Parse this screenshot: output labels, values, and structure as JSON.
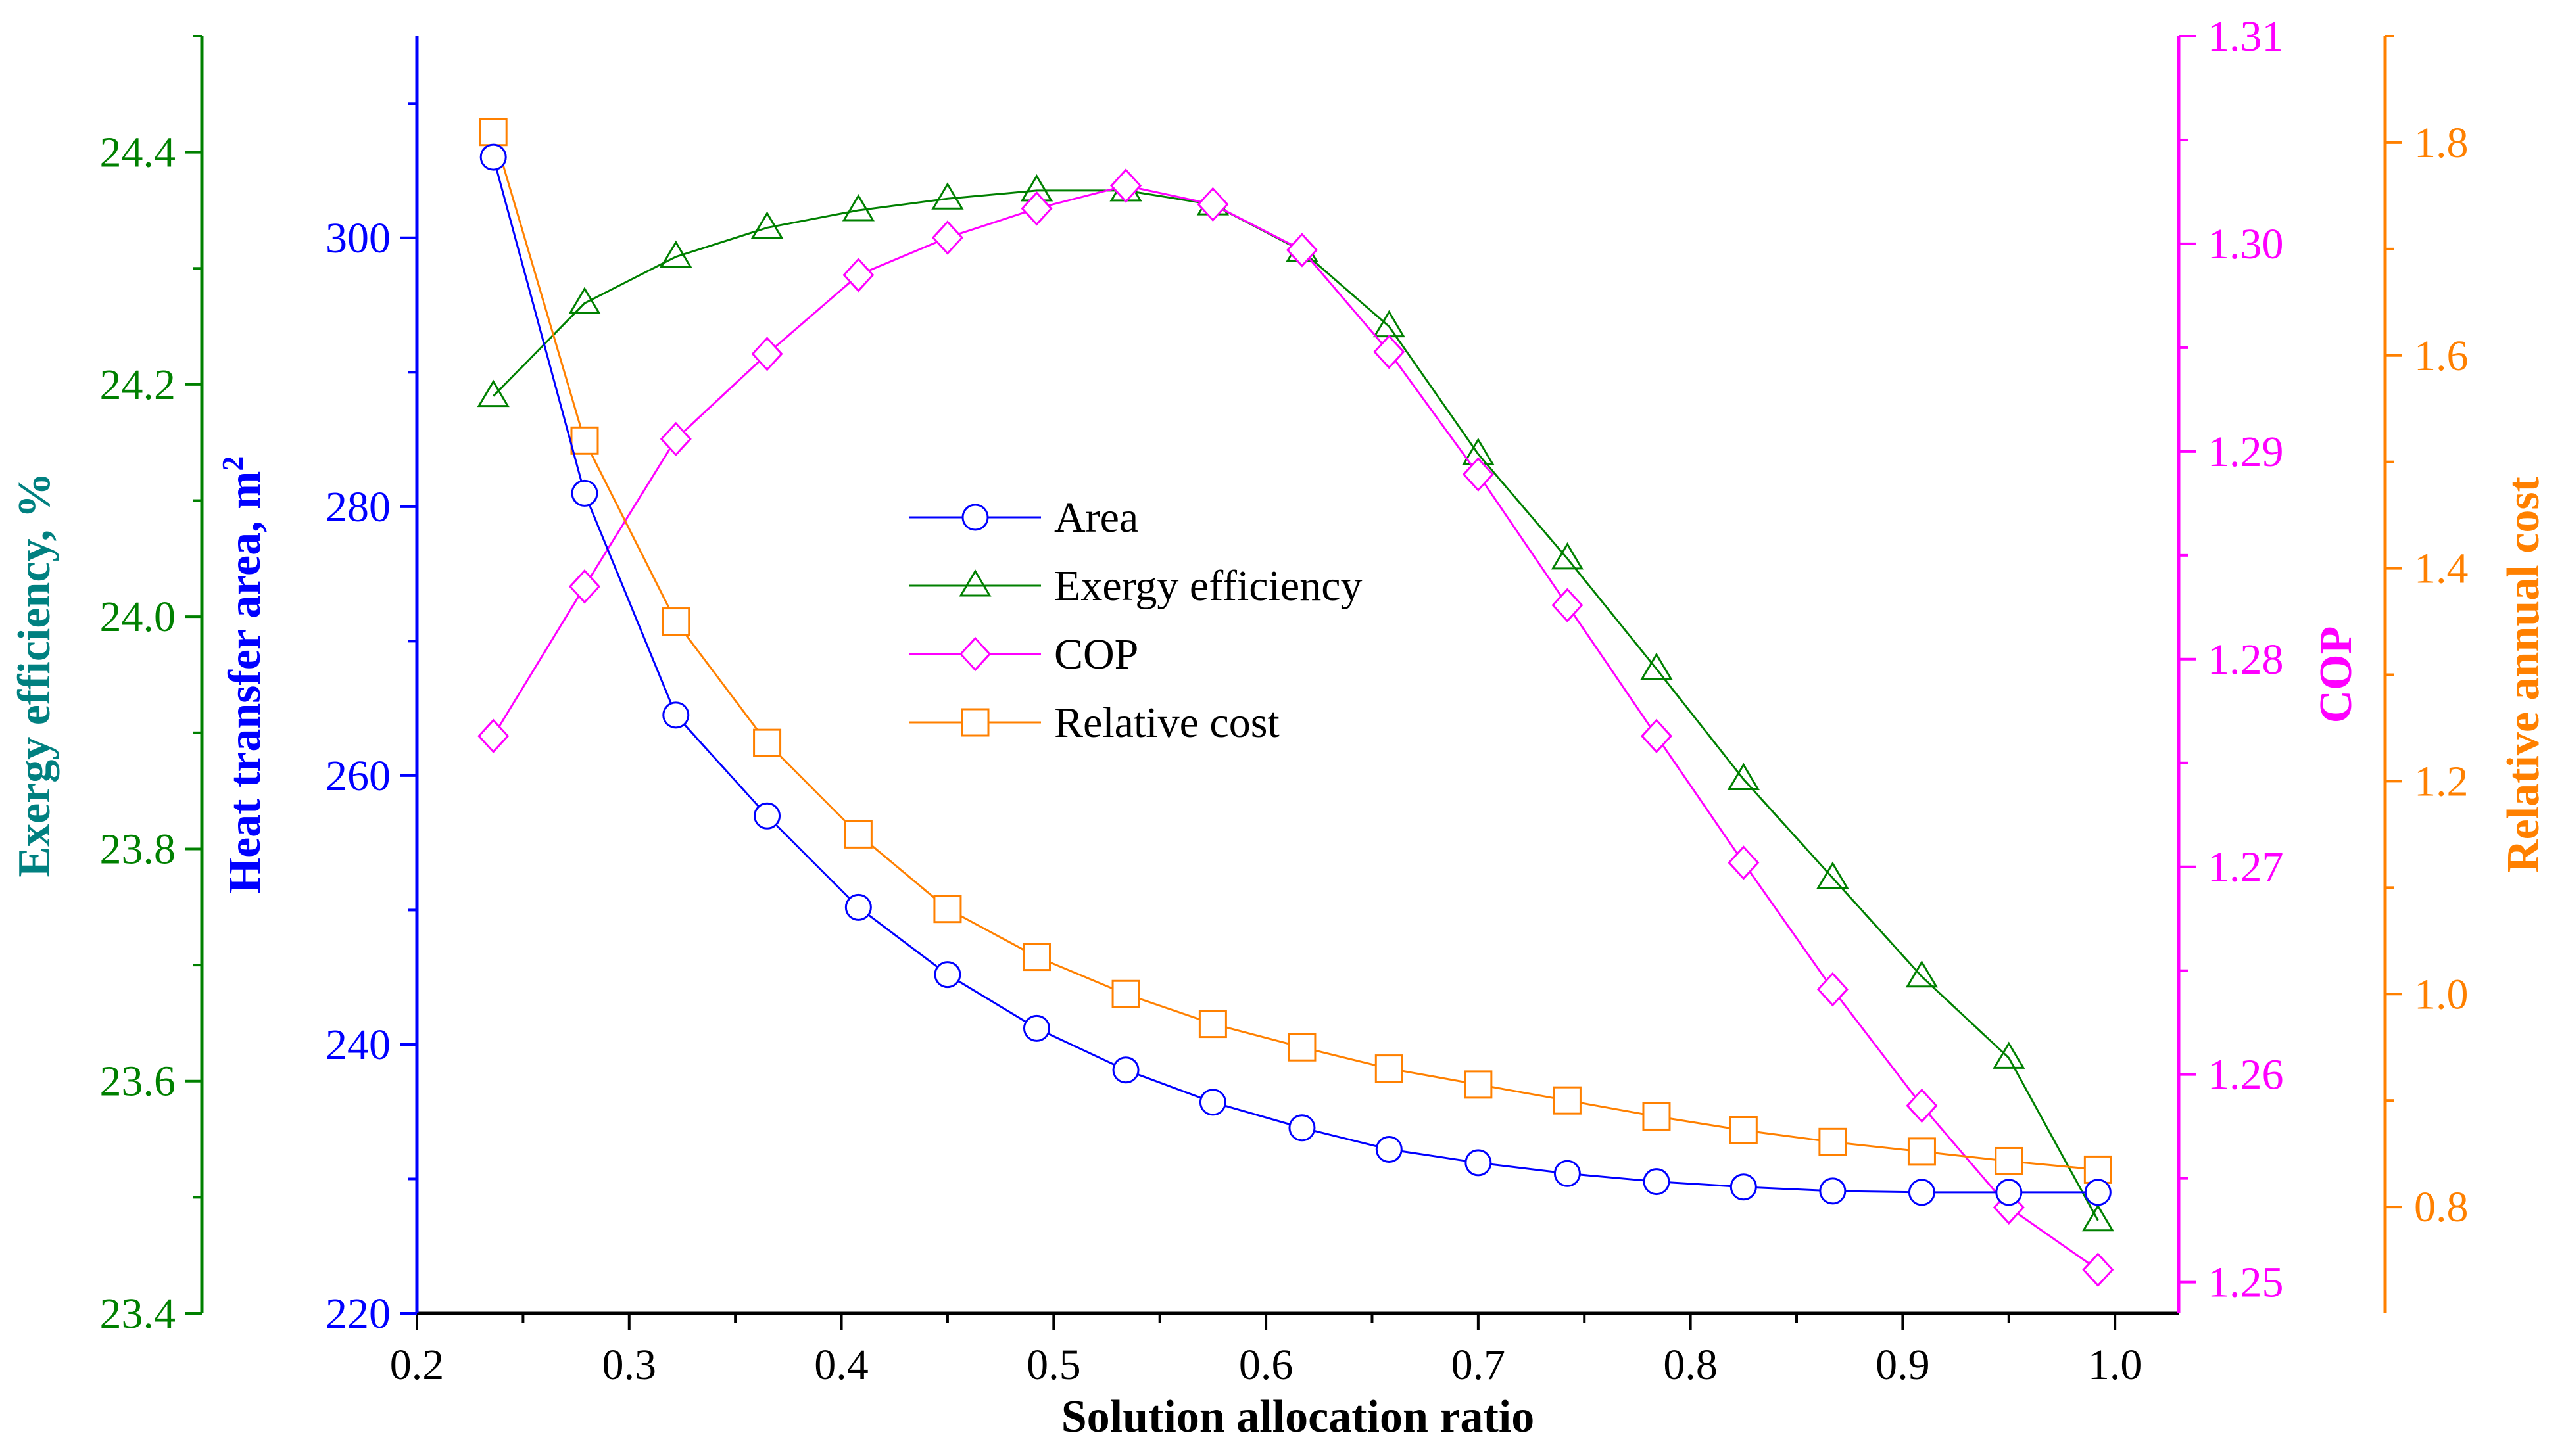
{
  "chart_data": {
    "type": "line",
    "xlabel": "Solution allocation ratio",
    "xlim": [
      0.2,
      1.03
    ],
    "xticks": [
      "0.2",
      "0.3",
      "0.4",
      "0.5",
      "0.6",
      "0.7",
      "0.8",
      "0.9",
      "1.0"
    ],
    "x": [
      0.236,
      0.279,
      0.322,
      0.365,
      0.408,
      0.45,
      0.492,
      0.534,
      0.575,
      0.617,
      0.658,
      0.7,
      0.742,
      0.784,
      0.825,
      0.867,
      0.909,
      0.95,
      0.992
    ],
    "axes": {
      "area": {
        "label": "Heat transfer area, m",
        "label_sup": "2",
        "ylim": [
          220,
          315
        ],
        "ticks": [
          "220",
          "240",
          "260",
          "280",
          "300"
        ],
        "color": "#0000ff",
        "side": "inner-left"
      },
      "exergy": {
        "label": "Exergy efficiency, %",
        "ylim": [
          23.4,
          24.5
        ],
        "ticks": [
          "23.4",
          "23.6",
          "23.8",
          "24.0",
          "24.2",
          "24.4"
        ],
        "color": "#008000",
        "title_color": "#008080",
        "side": "outer-left"
      },
      "cop": {
        "label": "COP",
        "ylim": [
          1.2485,
          1.31
        ],
        "ticks": [
          "1.25",
          "1.26",
          "1.27",
          "1.28",
          "1.29",
          "1.30",
          "1.31"
        ],
        "color": "#ff00ff",
        "side": "inner-right"
      },
      "cost": {
        "label": "Relative annual cost",
        "ylim": [
          0.7,
          1.9
        ],
        "ticks": [
          "0.8",
          "1.0",
          "1.2",
          "1.4",
          "1.6",
          "1.8"
        ],
        "color": "#ff8000",
        "side": "outer-right"
      }
    },
    "series": [
      {
        "name": "Area",
        "axis": "area",
        "marker": "circle",
        "color": "#0000ff",
        "values": [
          306,
          281,
          264.5,
          257,
          250.2,
          245.2,
          241.2,
          238.1,
          235.7,
          233.8,
          232.2,
          231.2,
          230.4,
          229.8,
          229.4,
          229.1,
          229,
          229,
          229
        ]
      },
      {
        "name": "Exergy efficiency",
        "axis": "exergy",
        "marker": "triangle",
        "color": "#008000",
        "values": [
          24.19,
          24.27,
          24.31,
          24.335,
          24.35,
          24.36,
          24.367,
          24.367,
          24.355,
          24.315,
          24.25,
          24.14,
          24.05,
          23.955,
          23.86,
          23.775,
          23.69,
          23.62,
          23.48
        ]
      },
      {
        "name": "COP",
        "axis": "cop",
        "marker": "diamond",
        "color": "#ff00ff",
        "values": [
          1.2763,
          1.2835,
          1.2906,
          1.2947,
          1.2985,
          1.3003,
          1.3017,
          1.3028,
          1.3019,
          1.2997,
          1.2948,
          1.2889,
          1.2826,
          1.2763,
          1.2702,
          1.2641,
          1.2585,
          1.2536,
          1.2506
        ]
      },
      {
        "name": "Relative cost",
        "axis": "cost",
        "marker": "square",
        "color": "#ff8000",
        "values": [
          1.81,
          1.52,
          1.35,
          1.236,
          1.15,
          1.08,
          1.035,
          1.0,
          0.972,
          0.95,
          0.93,
          0.915,
          0.9,
          0.885,
          0.872,
          0.861,
          0.852,
          0.843,
          0.835
        ]
      }
    ],
    "legend": {
      "placement": "center"
    },
    "grid": false
  }
}
